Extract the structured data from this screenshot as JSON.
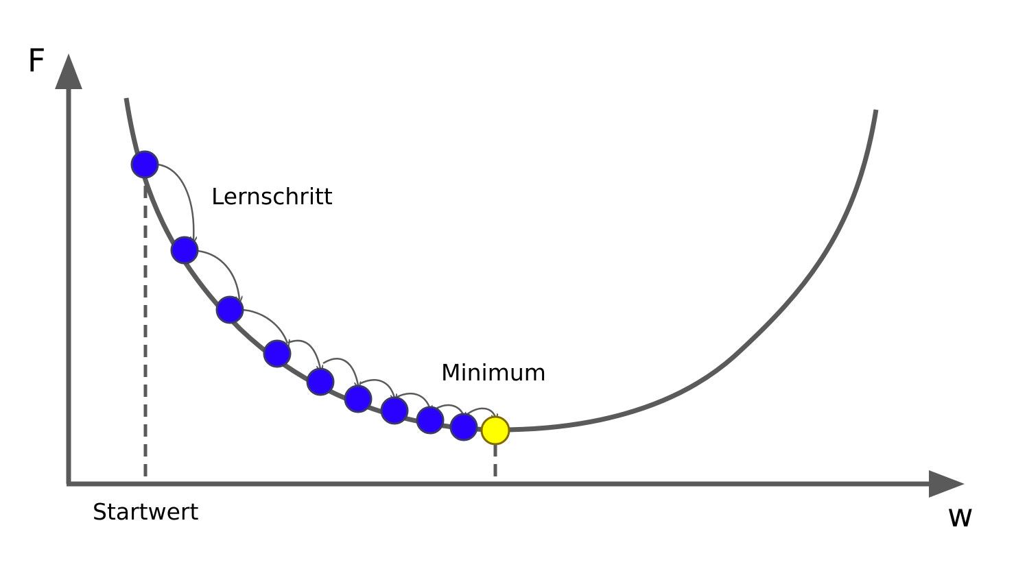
{
  "labels": {
    "y_axis": "F",
    "x_axis": "w",
    "start": "Startwert",
    "step": "Lernschritt",
    "minimum": "Minimum"
  },
  "colors": {
    "curve": "#5a5a5a",
    "axis": "#5a5a5a",
    "step_point_fill": "#2a00ff",
    "step_point_stroke": "#3a3a6a",
    "minimum_fill": "#ffff00",
    "minimum_stroke": "#806a00",
    "arc": "#5a5a5a",
    "text": "#000000"
  },
  "steps": {
    "count": 9
  }
}
